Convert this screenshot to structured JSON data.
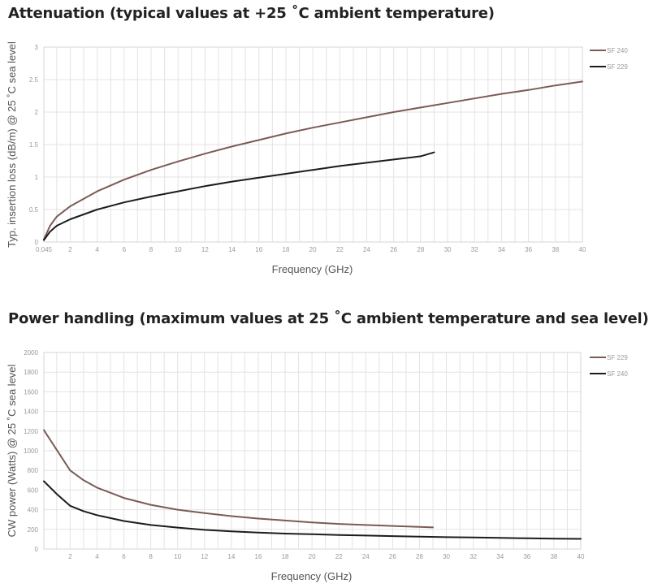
{
  "charts": [
    {
      "title": "Attenuation (typical values at +25 ˚C ambient temperature)",
      "chart_data": {
        "type": "line",
        "title": "Attenuation (typical values at +25 ˚C ambient temperature)",
        "xlabel": "Frequency (GHz)",
        "ylabel": "Typ. insertion loss (dB/m) @ 25 ˚C sea level",
        "xlim": [
          0.045,
          40
        ],
        "ylim": [
          0,
          3
        ],
        "x_ticks": [
          "0.045",
          "2",
          "4",
          "6",
          "8",
          "10",
          "12",
          "14",
          "16",
          "18",
          "20",
          "22",
          "24",
          "26",
          "28",
          "30",
          "32",
          "34",
          "36",
          "38",
          "40"
        ],
        "y_ticks": [
          "0",
          "0.5",
          "1",
          "1.5",
          "2",
          "2.5",
          "3"
        ],
        "grid": true,
        "legend_position": "top-right",
        "series": [
          {
            "name": "SF 240",
            "color": "#7a5c54",
            "x": [
              0.045,
              0.5,
              1,
              2,
              4,
              6,
              8,
              10,
              12,
              14,
              16,
              18,
              20,
              22,
              24,
              26,
              28,
              30,
              32,
              34,
              36,
              38,
              40
            ],
            "y": [
              0.04,
              0.25,
              0.39,
              0.55,
              0.78,
              0.96,
              1.11,
              1.24,
              1.36,
              1.47,
              1.57,
              1.67,
              1.76,
              1.84,
              1.92,
              2.0,
              2.07,
              2.14,
              2.21,
              2.28,
              2.34,
              2.41,
              2.47
            ]
          },
          {
            "name": "SF 229",
            "color": "#1c1c1c",
            "x": [
              0.045,
              0.5,
              1,
              2,
              4,
              6,
              8,
              10,
              12,
              14,
              16,
              18,
              20,
              22,
              24,
              26,
              28,
              29
            ],
            "y": [
              0.03,
              0.16,
              0.25,
              0.35,
              0.5,
              0.61,
              0.7,
              0.78,
              0.86,
              0.93,
              0.99,
              1.05,
              1.11,
              1.17,
              1.22,
              1.27,
              1.32,
              1.38
            ]
          }
        ]
      }
    },
    {
      "title": "Power handling (maximum values at 25 ˚C ambient temperature and sea level)",
      "chart_data": {
        "type": "line",
        "title": "Power handling (maximum values at 25 ˚C ambient temperature and sea level)",
        "xlabel": "Frequency (GHz)",
        "ylabel": "CW power (Watts) @ 25 ˚C sea level",
        "xlim": [
          0.045,
          40
        ],
        "ylim": [
          0,
          2000
        ],
        "x_ticks": [
          "2",
          "4",
          "6",
          "8",
          "10",
          "12",
          "14",
          "16",
          "18",
          "20",
          "22",
          "24",
          "26",
          "28",
          "30",
          "32",
          "34",
          "36",
          "38",
          "40"
        ],
        "y_ticks": [
          "0",
          "200",
          "400",
          "600",
          "800",
          "1000",
          "1200",
          "1400",
          "1600",
          "1800",
          "2000"
        ],
        "grid": true,
        "legend_position": "top-right",
        "series": [
          {
            "name": "SF 229",
            "color": "#7a5c54",
            "x": [
              0.045,
              1,
              2,
              3,
              4,
              6,
              8,
              10,
              12,
              14,
              16,
              18,
              20,
              22,
              24,
              26,
              28,
              29
            ],
            "y": [
              1210,
              1010,
              800,
              700,
              625,
              520,
              450,
              400,
              365,
              335,
              310,
              290,
              270,
              255,
              245,
              235,
              225,
              220
            ]
          },
          {
            "name": "SF 240",
            "color": "#1c1c1c",
            "x": [
              0.045,
              1,
              2,
              3,
              4,
              6,
              8,
              10,
              12,
              14,
              16,
              18,
              20,
              22,
              24,
              26,
              28,
              30,
              32,
              34,
              36,
              38,
              40
            ],
            "y": [
              690,
              560,
              440,
              385,
              345,
              285,
              245,
              218,
              195,
              180,
              167,
              157,
              150,
              143,
              137,
              131,
              126,
              121,
              117,
              113,
              109,
              106,
              103
            ]
          }
        ]
      }
    }
  ]
}
